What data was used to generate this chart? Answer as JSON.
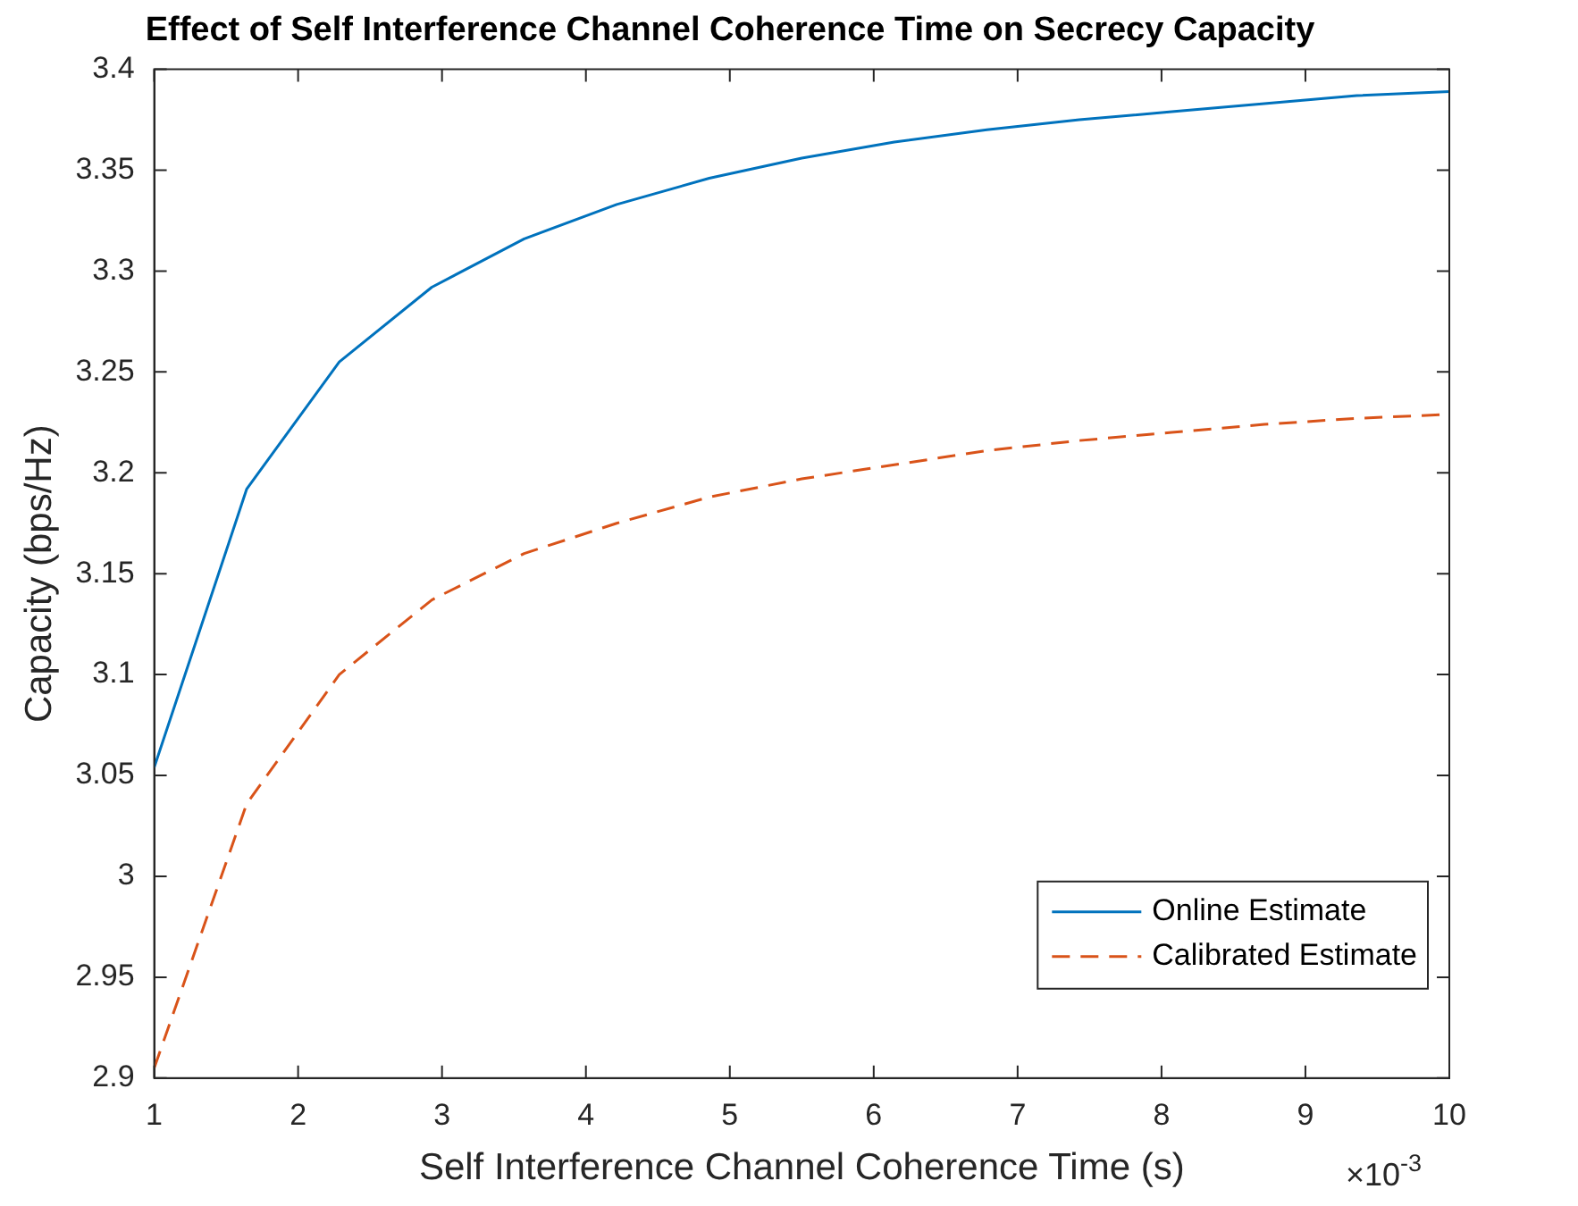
{
  "chart_data": {
    "type": "line",
    "title": "Effect of Self Interference Channel Coherence Time on Secrecy Capacity",
    "xlabel": "Self Interference Channel Coherence Time (s)",
    "ylabel": "Capacity (bps/Hz)",
    "annotations": [
      "×10$^{-3}$"
    ],
    "x": [
      1,
      1.643,
      2.286,
      2.929,
      3.571,
      4.214,
      4.857,
      5.5,
      6.143,
      6.786,
      7.429,
      8.071,
      8.714,
      9.357,
      10
    ],
    "series": [
      {
        "name": "Online Estimate",
        "color": "#0072bd",
        "line_style": "solid",
        "values": [
          3.054,
          3.192,
          3.255,
          3.292,
          3.316,
          3.333,
          3.346,
          3.356,
          3.364,
          3.37,
          3.375,
          3.379,
          3.383,
          3.387,
          3.389
        ]
      },
      {
        "name": "Calibrated Estimate",
        "color": "#d95319",
        "line_style": "dashed",
        "values": [
          2.905,
          3.036,
          3.1,
          3.137,
          3.16,
          3.175,
          3.188,
          3.197,
          3.204,
          3.211,
          3.216,
          3.22,
          3.224,
          3.227,
          3.229
        ]
      }
    ],
    "xlim": [
      1,
      10
    ],
    "xticks": [
      1,
      2,
      3,
      4,
      5,
      6,
      7,
      8,
      9,
      10
    ],
    "ylim": [
      2.9,
      3.4
    ],
    "yticks": [
      2.9,
      2.95,
      3,
      3.05,
      3.1,
      3.15,
      3.2,
      3.25,
      3.3,
      3.35,
      3.4
    ],
    "grid": false,
    "legend": "bottom right",
    "marker": "none"
  }
}
